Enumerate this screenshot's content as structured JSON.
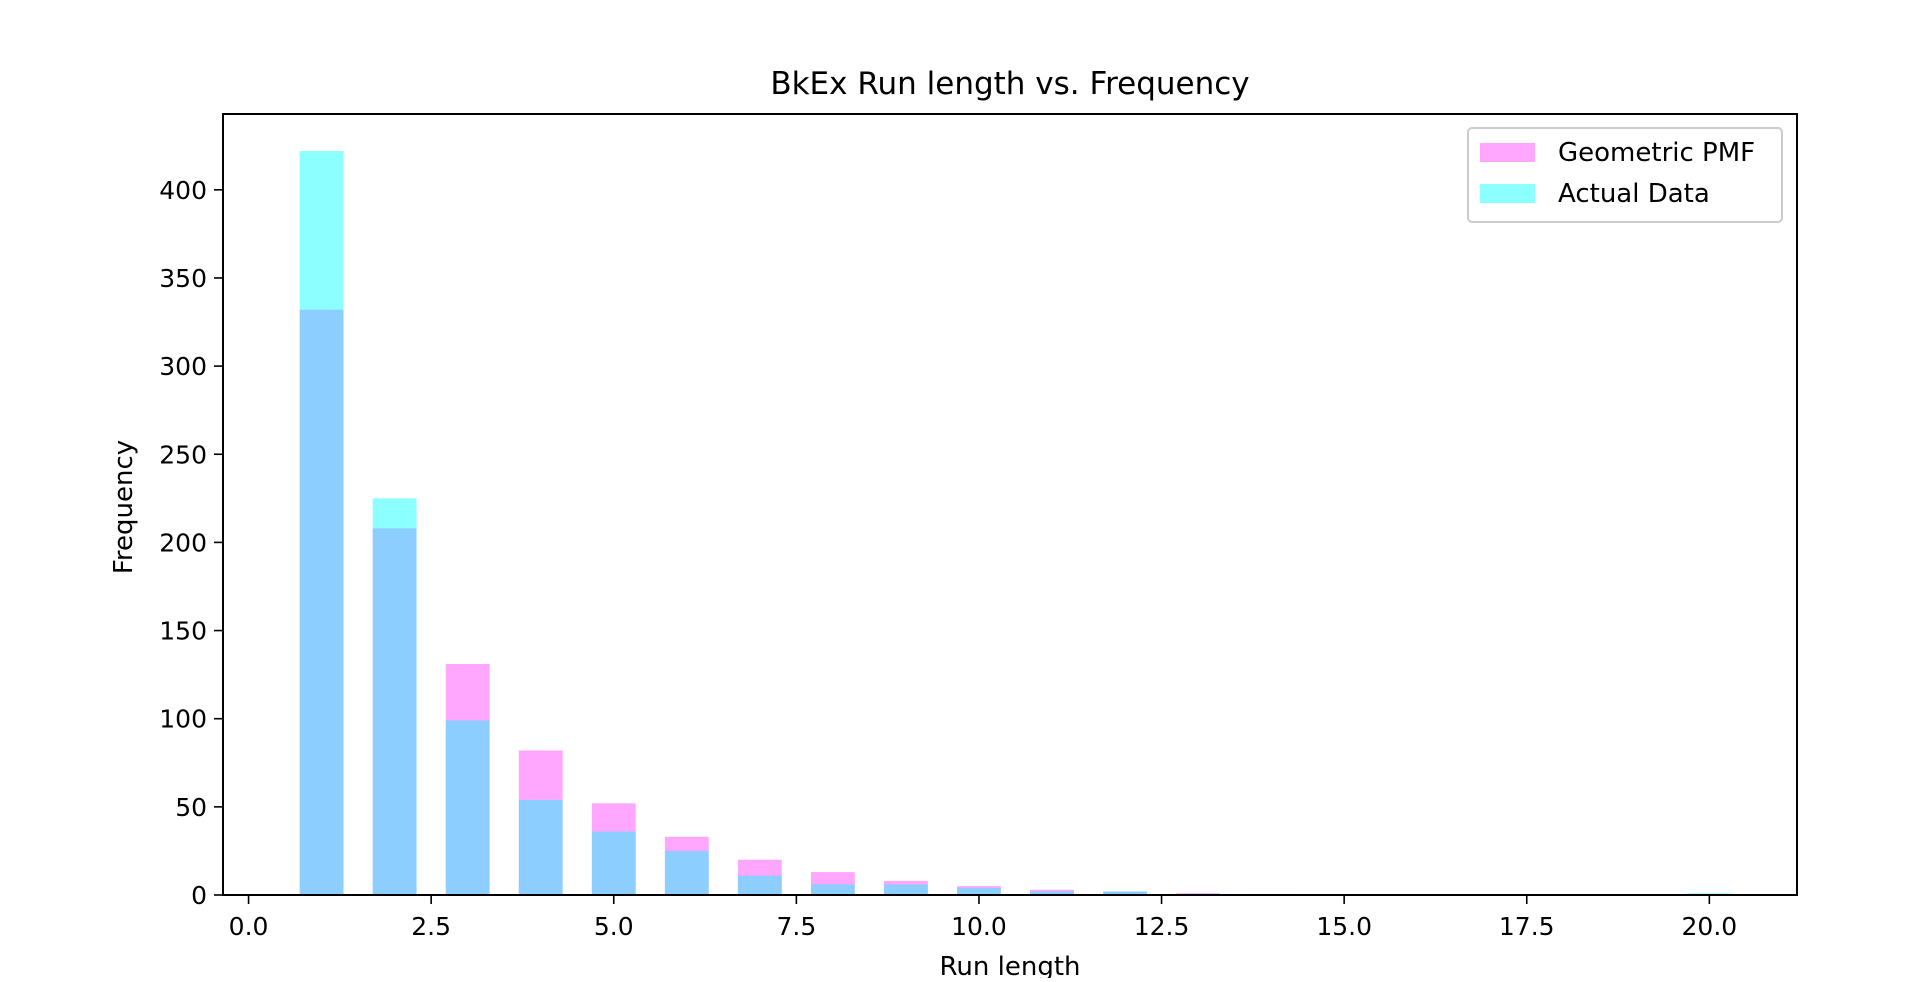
{
  "chart_data": {
    "type": "bar",
    "title": "BkEx Run length vs. Frequency",
    "xlabel": "Run length",
    "ylabel": "Frequency",
    "xlim": [
      -0.35,
      21.2
    ],
    "ylim": [
      0,
      443
    ],
    "xticks": [
      0.0,
      2.5,
      5.0,
      7.5,
      10.0,
      12.5,
      15.0,
      17.5,
      20.0
    ],
    "xtick_labels": [
      "0.0",
      "2.5",
      "5.0",
      "7.5",
      "10.0",
      "12.5",
      "15.0",
      "17.5",
      "20.0"
    ],
    "yticks": [
      0,
      50,
      100,
      150,
      200,
      250,
      300,
      350,
      400
    ],
    "ytick_labels": [
      "0",
      "50",
      "100",
      "150",
      "200",
      "250",
      "300",
      "350",
      "400"
    ],
    "bar_width": 0.6,
    "x": [
      1,
      2,
      3,
      4,
      5,
      6,
      7,
      8,
      9,
      10,
      11,
      12,
      13,
      14,
      15,
      16,
      17,
      18,
      19,
      20
    ],
    "grid": false,
    "legend_position": "top-right",
    "series": [
      {
        "name": "Geometric PMF",
        "color": "#ff00ff",
        "opacity": 0.35,
        "values": [
          332,
          208,
          131,
          82,
          52,
          33,
          20,
          13,
          8,
          5,
          3,
          2,
          1,
          0.6,
          0.4,
          0.25,
          0.15,
          0.1,
          0.06,
          0.04
        ]
      },
      {
        "name": "Actual Data",
        "color": "#00ffff",
        "opacity": 0.45,
        "values": [
          422,
          225,
          99,
          54,
          36,
          25,
          11,
          6,
          6,
          4,
          2,
          2,
          0,
          0,
          0,
          0,
          0,
          0,
          0,
          1
        ]
      }
    ]
  }
}
